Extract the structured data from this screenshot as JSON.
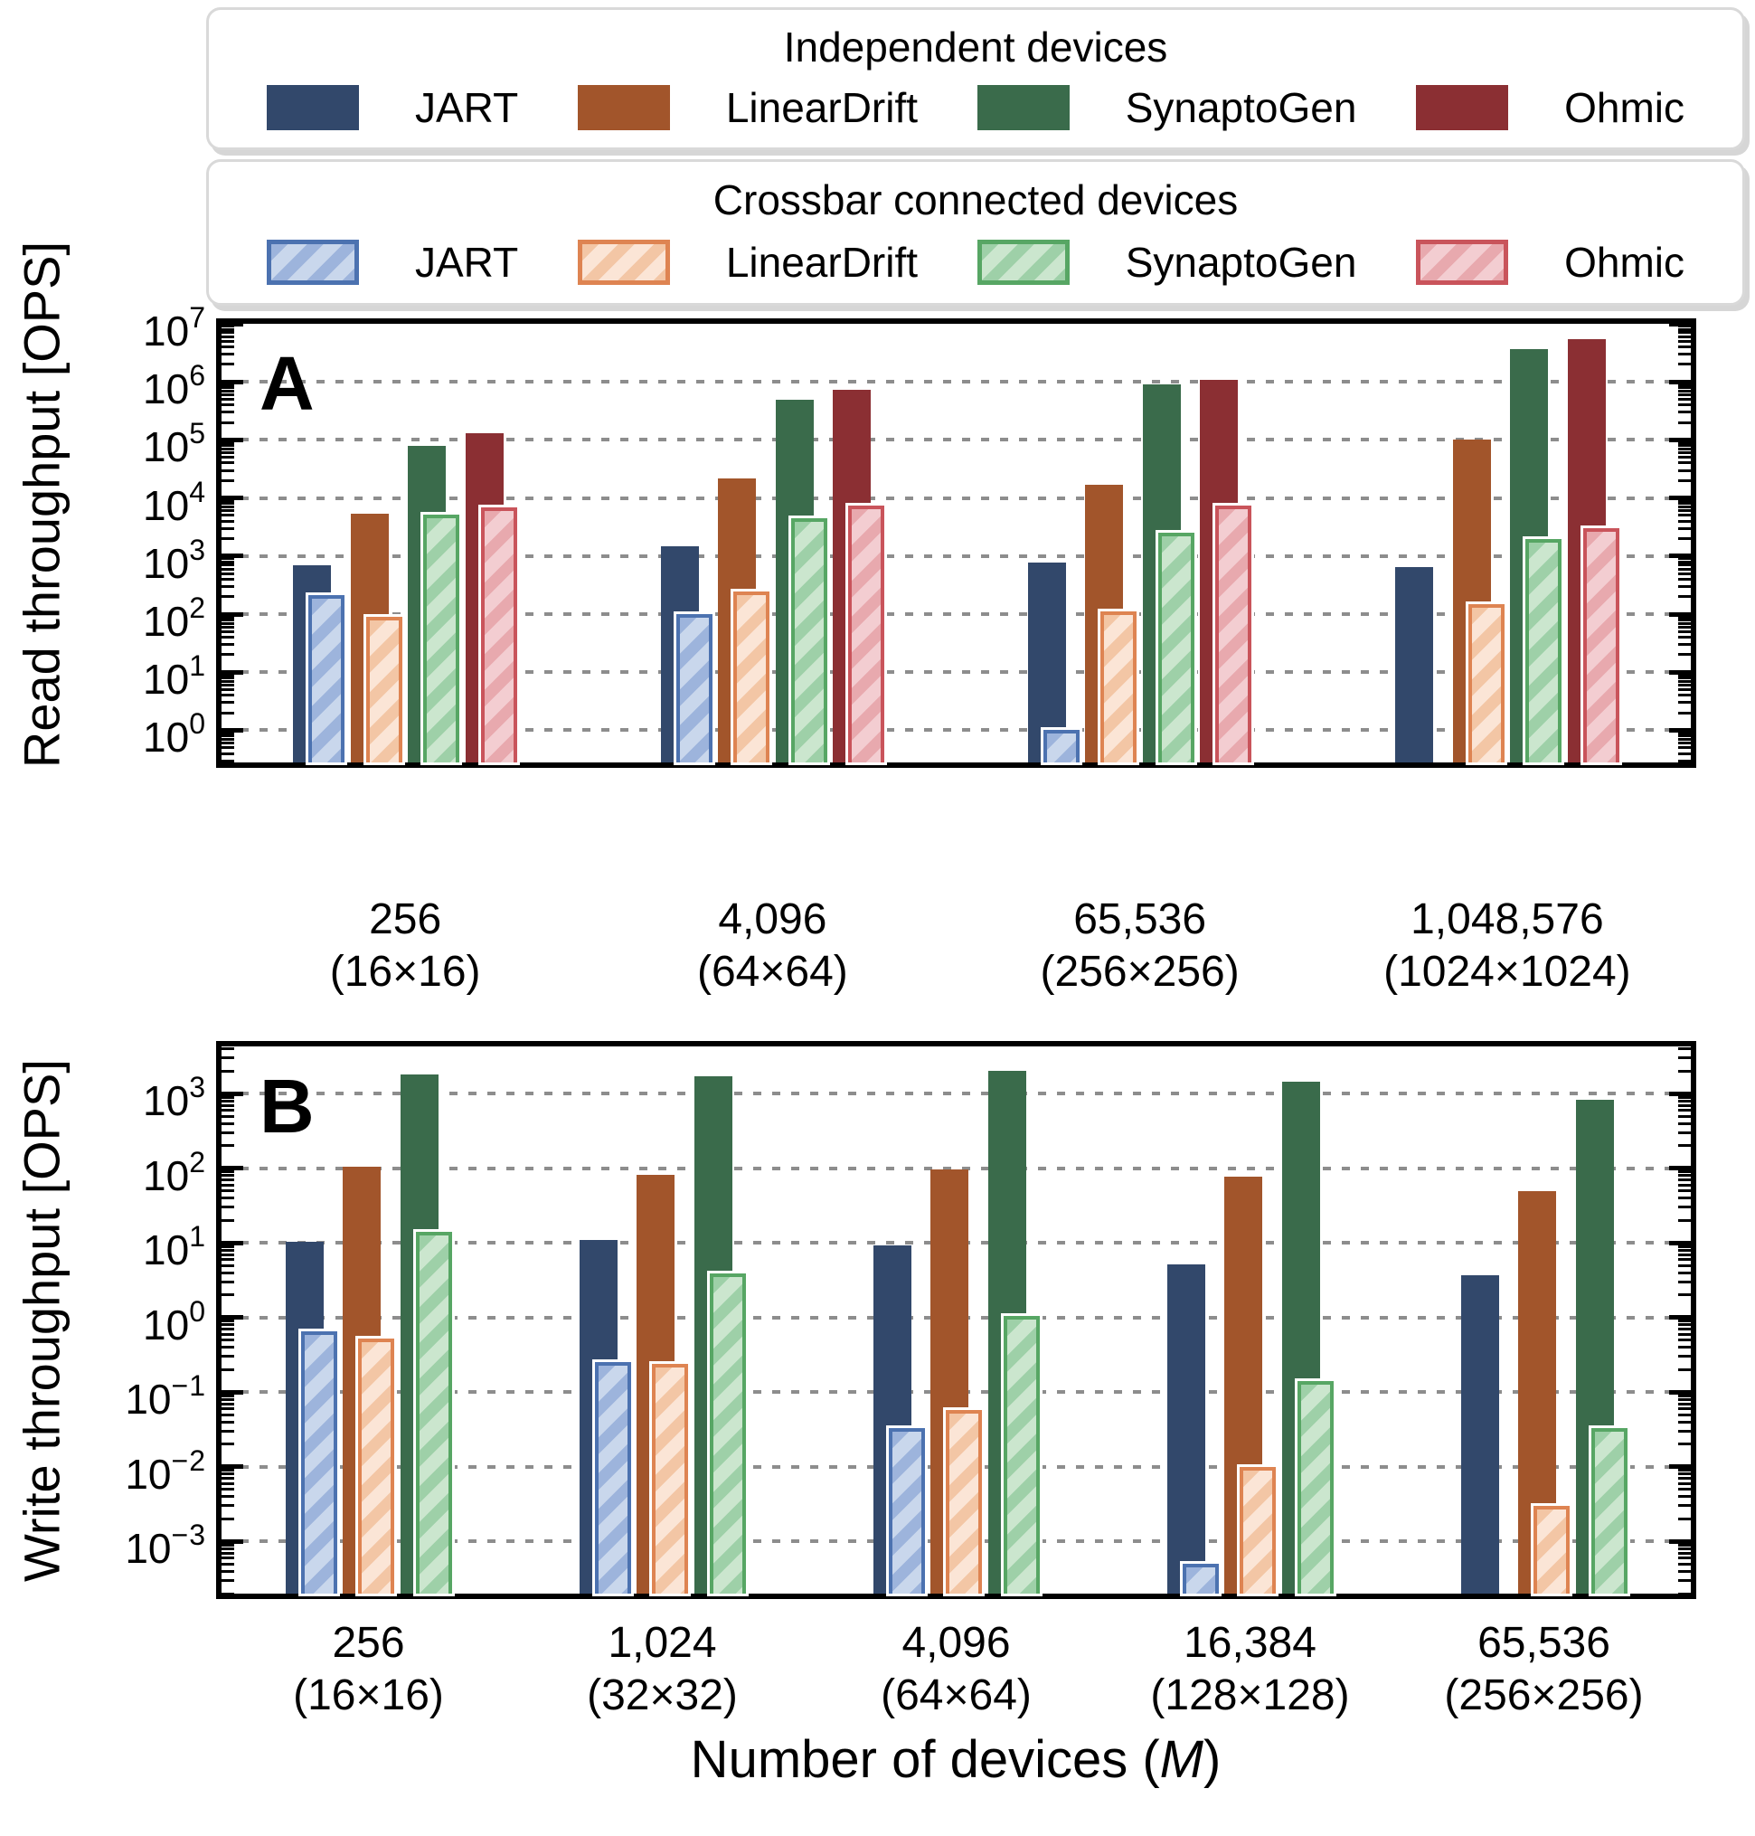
{
  "legend": {
    "groups": [
      {
        "title": "Independent devices",
        "style": "solid",
        "entries": [
          "JART",
          "LinearDrift",
          "SynaptoGen",
          "Ohmic"
        ]
      },
      {
        "title": "Crossbar connected devices",
        "style": "hatched",
        "entries": [
          "JART",
          "LinearDrift",
          "SynaptoGen",
          "Ohmic"
        ]
      }
    ]
  },
  "colors": {
    "models": [
      {
        "name": "JART",
        "solid": "#32486B",
        "edge": "#4C72B0",
        "fill": "#C9D7EC",
        "stripe": "#9DB4DC"
      },
      {
        "name": "LinearDrift",
        "solid": "#A2552B",
        "edge": "#DE8452",
        "fill": "#FBE5D6",
        "stripe": "#F3C6A5"
      },
      {
        "name": "SynaptoGen",
        "solid": "#3A6B4B",
        "edge": "#57A664",
        "fill": "#CBE6CE",
        "stripe": "#9ED0A8"
      },
      {
        "name": "Ohmic",
        "solid": "#8B2F33",
        "edge": "#C9545B",
        "fill": "#F3CDD1",
        "stripe": "#E8A9AE"
      }
    ],
    "gridline": "#8d8d8d",
    "axis": "#000000"
  },
  "xlabel": {
    "prefix": "Number of devices (",
    "italic": "M",
    "suffix": ")"
  },
  "chart_data": [
    {
      "type": "bar",
      "panel_label": "A",
      "yscale": "log",
      "ylabel": "Read throughput [OPS]",
      "ylim": [
        0.28,
        10000000
      ],
      "ytick_exponents": [
        0,
        1,
        2,
        3,
        4,
        5,
        6,
        7
      ],
      "grid": "dotted horizontal at each decade",
      "legend_position": "above figure",
      "categories": [
        {
          "line1": "256",
          "line2": "(16×16)"
        },
        {
          "line1": "4,096",
          "line2": "(64×64)"
        },
        {
          "line1": "65,536",
          "line2": "(256×256)"
        },
        {
          "line1": "1,048,576",
          "line2": "(1024×1024)"
        }
      ],
      "series": {
        "independent": [
          {
            "name": "JART",
            "values": [
              700,
              1500,
              770,
              650
            ]
          },
          {
            "name": "LinearDrift",
            "values": [
              5400,
              22000,
              17000,
              100000
            ]
          },
          {
            "name": "SynaptoGen",
            "values": [
              80000,
              500000,
              890000,
              3700000
            ]
          },
          {
            "name": "Ohmic",
            "values": [
              130000,
              740000,
              1100000,
              5400000
            ]
          }
        ],
        "crossbar": [
          {
            "name": "JART",
            "values": [
              210,
              100,
              1.0,
              null
            ]
          },
          {
            "name": "LinearDrift",
            "values": [
              90,
              245,
              110,
              150
            ]
          },
          {
            "name": "SynaptoGen",
            "values": [
              5200,
              4500,
              2500,
              2000
            ]
          },
          {
            "name": "Ohmic",
            "values": [
              6900,
              7500,
              7500,
              3000
            ]
          }
        ]
      }
    },
    {
      "type": "bar",
      "panel_label": "B",
      "yscale": "log",
      "ylabel": "Write throughput [OPS]",
      "ylim": [
        0.0002,
        4300
      ],
      "ytick_exponents": [
        -3,
        -2,
        -1,
        0,
        1,
        2,
        3
      ],
      "grid": "dotted horizontal at each decade",
      "categories": [
        {
          "line1": "256",
          "line2": "(16×16)"
        },
        {
          "line1": "1,024",
          "line2": "(32×32)"
        },
        {
          "line1": "4,096",
          "line2": "(64×64)"
        },
        {
          "line1": "16,384",
          "line2": "(128×128)"
        },
        {
          "line1": "65,536",
          "line2": "(256×256)"
        }
      ],
      "series": {
        "independent": [
          {
            "name": "JART",
            "values": [
              10.5,
              11,
              9.2,
              5.2,
              3.7
            ]
          },
          {
            "name": "LinearDrift",
            "values": [
              105,
              81,
              96,
              78,
              50
            ]
          },
          {
            "name": "SynaptoGen",
            "values": [
              1800,
              1700,
              2000,
              1450,
              820
            ]
          }
        ],
        "crossbar": [
          {
            "name": "JART",
            "values": [
              0.65,
              0.25,
              0.033,
              0.0005,
              null
            ]
          },
          {
            "name": "LinearDrift",
            "values": [
              0.52,
              0.24,
              0.057,
              0.01,
              0.003
            ]
          },
          {
            "name": "SynaptoGen",
            "values": [
              14,
              3.9,
              1.05,
              0.14,
              0.033
            ]
          }
        ]
      }
    }
  ]
}
